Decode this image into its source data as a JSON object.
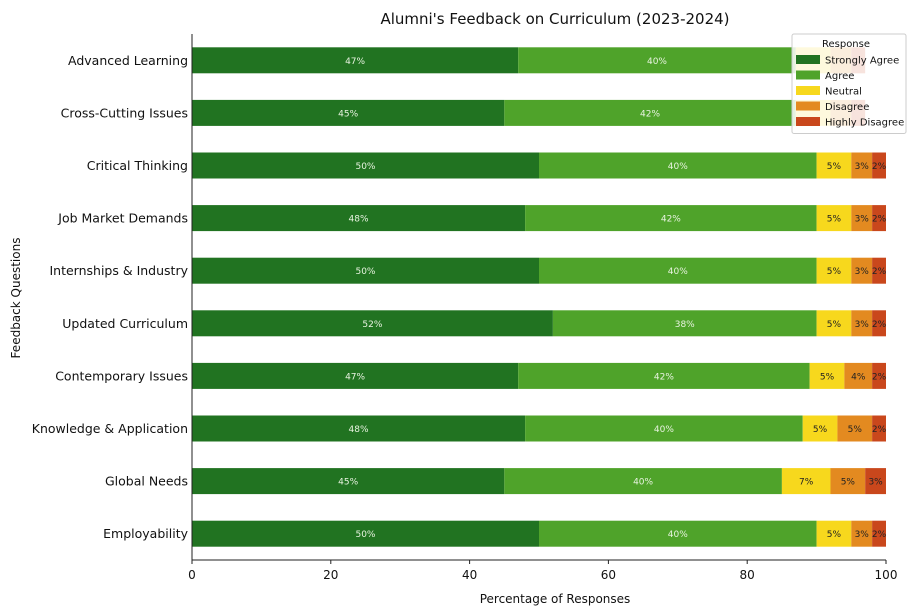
{
  "chart_data": {
    "type": "bar",
    "orientation": "horizontal",
    "stacked": true,
    "title": "Alumni's Feedback on Curriculum (2023-2024)",
    "xlabel": "Percentage of Responses",
    "ylabel": "Feedback Questions",
    "xlim": [
      0,
      100
    ],
    "xticks": [
      "0",
      "20",
      "40",
      "60",
      "80",
      "100"
    ],
    "grid": false,
    "legend_title": "Response",
    "legend_position": "top-right",
    "categories": [
      "Advanced Learning",
      "Cross-Cutting Issues",
      "Critical Thinking",
      "Job Market Demands",
      "Internships & Industry",
      "Updated Curriculum",
      "Contemporary Issues",
      "Knowledge & Application",
      "Global Needs",
      "Employability"
    ],
    "series": [
      {
        "name": "Strongly Agree",
        "color": "#217321",
        "values": [
          47,
          45,
          50,
          48,
          50,
          52,
          47,
          48,
          45,
          50
        ],
        "labels": [
          "47%",
          "45%",
          "50%",
          "48%",
          "50%",
          "52%",
          "47%",
          "48%",
          "45%",
          "50%"
        ]
      },
      {
        "name": "Agree",
        "color": "#4fa32a",
        "values": [
          40,
          42,
          40,
          42,
          40,
          38,
          42,
          40,
          40,
          40
        ],
        "labels": [
          "40%",
          "42%",
          "40%",
          "42%",
          "40%",
          "38%",
          "42%",
          "40%",
          "40%",
          "40%"
        ]
      },
      {
        "name": "Neutral",
        "color": "#f7d81d",
        "values": [
          5,
          5,
          5,
          5,
          5,
          5,
          5,
          5,
          7,
          5
        ],
        "labels": [
          "",
          "",
          "5%",
          "5%",
          "5%",
          "5%",
          "5%",
          "5%",
          "7%",
          "5%"
        ]
      },
      {
        "name": "Disagree",
        "color": "#e38a20",
        "values": [
          3,
          3,
          3,
          3,
          3,
          3,
          4,
          5,
          5,
          3
        ],
        "labels": [
          "",
          "",
          "3%",
          "3%",
          "3%",
          "3%",
          "4%",
          "5%",
          "5%",
          "3%"
        ]
      },
      {
        "name": "Highly Disagree",
        "color": "#c9471c",
        "values": [
          2,
          2,
          2,
          2,
          2,
          2,
          2,
          2,
          3,
          2
        ],
        "labels": [
          "",
          "",
          "2%",
          "2%",
          "2%",
          "2%",
          "2%",
          "2%",
          "3%",
          "2%"
        ]
      }
    ]
  }
}
